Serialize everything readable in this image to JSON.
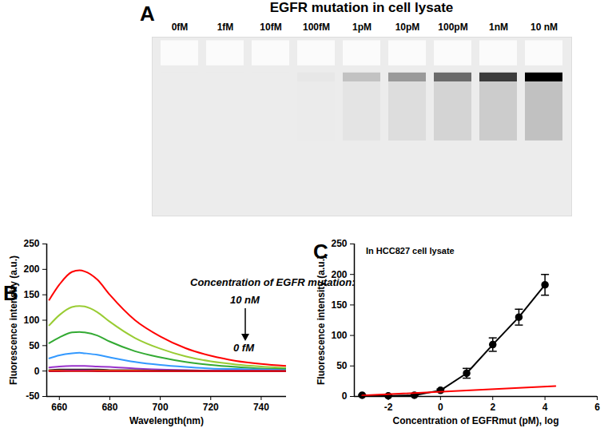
{
  "chart_data": [
    {
      "panel": "A",
      "type": "gel",
      "title": "EGFR mutation in cell lysate",
      "categories": [
        "0fM",
        "1fM",
        "10fM",
        "100fM",
        "1pM",
        "10pM",
        "100pM",
        "1nM",
        "10 nM"
      ],
      "values": [
        0,
        0,
        0,
        0.02,
        0.18,
        0.35,
        0.55,
        0.75,
        1.0
      ]
    },
    {
      "panel": "B",
      "type": "line",
      "x_label": "Wavelength(nm)",
      "y_label": "Fluorescence intensity (a.u.)",
      "annotations": [
        "Concentration of EGFR mutation:",
        "10 nM",
        "0 fM"
      ],
      "x": [
        656,
        660,
        665,
        668,
        670,
        675,
        680,
        690,
        700,
        710,
        720,
        730,
        740,
        750
      ],
      "xlim": [
        655,
        750
      ],
      "xticks": [
        660,
        680,
        700,
        720,
        740
      ],
      "ylim": [
        -50,
        250
      ],
      "yticks": [
        -50,
        0,
        50,
        100,
        150,
        200,
        250
      ],
      "series": [
        {
          "color": "#ff0000",
          "values": [
            140,
            170,
            195,
            198,
            196,
            180,
            150,
            100,
            68,
            45,
            30,
            20,
            14,
            10
          ]
        },
        {
          "color": "#99cc33",
          "values": [
            90,
            110,
            126,
            128,
            127,
            116,
            97,
            65,
            44,
            29,
            19,
            13,
            9,
            6
          ]
        },
        {
          "color": "#33aa33",
          "values": [
            55,
            66,
            76,
            77,
            76,
            70,
            58,
            39,
            27,
            18,
            12,
            8,
            5,
            4
          ]
        },
        {
          "color": "#3399ff",
          "values": [
            25,
            31,
            35,
            36,
            35,
            32,
            27,
            18,
            12,
            8,
            5,
            4,
            3,
            2
          ]
        },
        {
          "color": "#9933cc",
          "values": [
            7,
            9,
            10,
            10,
            10,
            9,
            8,
            5,
            3,
            2,
            1,
            1,
            1,
            0
          ]
        },
        {
          "color": "#222222",
          "values": [
            2,
            3,
            3,
            3,
            3,
            3,
            2,
            2,
            1,
            1,
            0,
            0,
            0,
            0
          ]
        },
        {
          "color": "#ff9900",
          "values": [
            1,
            1,
            1,
            1,
            1,
            1,
            1,
            1,
            0,
            0,
            0,
            0,
            0,
            0
          ]
        },
        {
          "color": "#cc33cc",
          "values": [
            0,
            0,
            1,
            1,
            1,
            0,
            0,
            0,
            0,
            0,
            0,
            0,
            0,
            0
          ]
        },
        {
          "color": "#cc0000",
          "values": [
            0,
            0,
            0,
            0,
            0,
            0,
            0,
            0,
            0,
            0,
            0,
            0,
            0,
            0
          ]
        }
      ]
    },
    {
      "panel": "C",
      "type": "line",
      "x_label": "Concentration of EGFRmut (pM), log",
      "y_label": "Fluorescence intensity (a.u.)",
      "annotations": [
        "In HCC827 cell lysate"
      ],
      "xlim": [
        -3.3,
        6
      ],
      "xticks": [
        -2,
        0,
        2,
        4,
        6
      ],
      "ylim": [
        0,
        250
      ],
      "yticks": [
        0,
        50,
        100,
        150,
        200,
        250
      ],
      "series": [
        {
          "color": "#000000",
          "marker": "circle",
          "x": [
            -3,
            -2,
            -1,
            0,
            1,
            2,
            3,
            4
          ],
          "values": [
            2,
            1,
            2,
            10,
            38,
            85,
            130,
            183
          ],
          "error": [
            1,
            1,
            1,
            2,
            8,
            11,
            13,
            17
          ]
        },
        {
          "color": "#ff0000",
          "x": [
            -3,
            4.4
          ],
          "values": [
            1.5,
            17
          ]
        }
      ]
    }
  ]
}
